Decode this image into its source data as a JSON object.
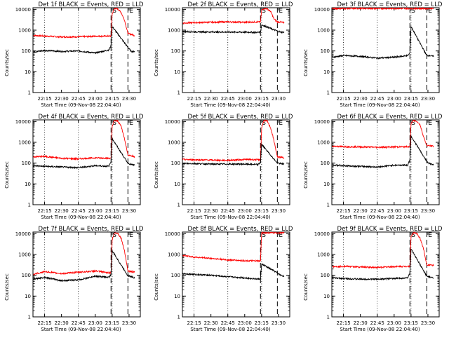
{
  "colors": {
    "events": "#000000",
    "lld": "#ff0000",
    "axes": "#000000",
    "background": "#ffffff"
  },
  "chart_data": [
    {
      "type": "line",
      "title": "Det 1f BLACK = Events, RED = LLD",
      "xlabel": "Start Time (09-Nov-08 22:04:40)",
      "ylabel": "Counts/sec",
      "yscale": "log",
      "ylim": [
        1,
        12000
      ],
      "xlim": [
        "22:04:40",
        "23:40:00"
      ],
      "xticks": [
        "22:15",
        "22:30",
        "22:45",
        "23:00",
        "23:15",
        "23:30"
      ],
      "yticks": [
        "1",
        "10",
        "100",
        "1000",
        "10000"
      ],
      "markers": [
        "S",
        "E"
      ],
      "series": [
        {
          "name": "LLD",
          "x": [
            "22:05",
            "22:15",
            "22:30",
            "22:45",
            "23:00",
            "23:14",
            "23:15",
            "23:17",
            "23:20",
            "23:23",
            "23:26",
            "23:29",
            "23:35"
          ],
          "y": [
            560,
            520,
            470,
            480,
            510,
            520,
            6000,
            11000,
            10500,
            7000,
            3000,
            700,
            550
          ]
        },
        {
          "name": "Events",
          "x": [
            "22:05",
            "22:15",
            "22:30",
            "22:45",
            "23:00",
            "23:12",
            "23:14",
            "23:15",
            "23:29",
            "23:32",
            "23:35"
          ],
          "y": [
            90,
            105,
            95,
            100,
            80,
            110,
            180,
            1500,
            150,
            95,
            95
          ]
        }
      ]
    },
    {
      "type": "line",
      "title": "Det 2f BLACK = Events, RED = LLD",
      "xlabel": "Start Time (09-Nov-08 22:04:40)",
      "ylabel": "Counts/sec",
      "yscale": "log",
      "ylim": [
        1,
        12000
      ],
      "xlim": [
        "22:04:40",
        "23:40:00"
      ],
      "xticks": [
        "22:15",
        "22:30",
        "22:45",
        "23:00",
        "23:15",
        "23:30"
      ],
      "yticks": [
        "1",
        "10",
        "100",
        "1000",
        "10000"
      ],
      "markers": [
        "S",
        "E"
      ],
      "series": [
        {
          "name": "LLD",
          "x": [
            "22:05",
            "22:15",
            "22:30",
            "22:45",
            "23:00",
            "23:14",
            "23:15",
            "23:17",
            "23:20",
            "23:23",
            "23:26",
            "23:29",
            "23:35"
          ],
          "y": [
            2200,
            2300,
            2400,
            2500,
            2400,
            2500,
            9000,
            11000,
            10500,
            8000,
            3500,
            2500,
            2300
          ]
        },
        {
          "name": "Events",
          "x": [
            "22:05",
            "22:15",
            "22:30",
            "22:45",
            "23:00",
            "23:12",
            "23:14",
            "23:15",
            "23:29",
            "23:32",
            "23:35"
          ],
          "y": [
            850,
            830,
            820,
            810,
            800,
            780,
            850,
            1800,
            900,
            800,
            790
          ]
        }
      ]
    },
    {
      "type": "line",
      "title": "Det 3f BLACK = Events, RED = LLD",
      "xlabel": "Start Time (09-Nov-08 22:04:40)",
      "ylabel": "Counts/sec",
      "yscale": "log",
      "ylim": [
        1,
        12000
      ],
      "xlim": [
        "22:04:40",
        "23:40:00"
      ],
      "xticks": [
        "22:15",
        "22:30",
        "22:45",
        "23:00",
        "23:15",
        "23:30"
      ],
      "yticks": [
        "1",
        "10",
        "100",
        "1000",
        "10000"
      ],
      "markers": [
        "S",
        "E"
      ],
      "series": [
        {
          "name": "LLD",
          "x": [
            "22:05",
            "22:15",
            "22:30",
            "22:45",
            "23:00",
            "23:14",
            "23:15",
            "23:20",
            "23:29",
            "23:35"
          ],
          "y": [
            11000,
            11000,
            11000,
            11000,
            11000,
            11000,
            11000,
            11000,
            11000,
            11000
          ]
        },
        {
          "name": "Events",
          "x": [
            "22:05",
            "22:15",
            "22:30",
            "22:45",
            "23:00",
            "23:12",
            "23:14",
            "23:15",
            "23:29",
            "23:32",
            "23:35"
          ],
          "y": [
            50,
            60,
            55,
            45,
            50,
            60,
            80,
            1500,
            60,
            60,
            55
          ]
        }
      ]
    },
    {
      "type": "line",
      "title": "Det 4f BLACK = Events, RED = LLD",
      "xlabel": "Start Time (09-Nov-08 22:04:40)",
      "ylabel": "Counts/sec",
      "yscale": "log",
      "ylim": [
        1,
        12000
      ],
      "xlim": [
        "22:04:40",
        "23:40:00"
      ],
      "xticks": [
        "22:15",
        "22:30",
        "22:45",
        "23:00",
        "23:15",
        "23:30"
      ],
      "yticks": [
        "1",
        "10",
        "100",
        "1000",
        "10000"
      ],
      "markers": [
        "S",
        "E"
      ],
      "series": [
        {
          "name": "LLD",
          "x": [
            "22:05",
            "22:15",
            "22:30",
            "22:45",
            "23:00",
            "23:14",
            "23:15",
            "23:17",
            "23:20",
            "23:23",
            "23:26",
            "23:29",
            "23:35"
          ],
          "y": [
            200,
            210,
            170,
            160,
            180,
            170,
            6000,
            11000,
            10500,
            6000,
            1500,
            250,
            200
          ]
        },
        {
          "name": "Events",
          "x": [
            "22:05",
            "22:15",
            "22:30",
            "22:45",
            "23:00",
            "23:12",
            "23:14",
            "23:15",
            "23:29",
            "23:32",
            "23:35"
          ],
          "y": [
            75,
            70,
            65,
            60,
            75,
            70,
            120,
            1500,
            100,
            85,
            80
          ]
        }
      ]
    },
    {
      "type": "line",
      "title": "Det 5f BLACK = Events, RED = LLD",
      "xlabel": "Start Time (09-Nov-08 22:04:40)",
      "ylabel": "Counts/sec",
      "yscale": "log",
      "ylim": [
        1,
        12000
      ],
      "xlim": [
        "22:04:40",
        "23:40:00"
      ],
      "xticks": [
        "22:15",
        "22:30",
        "22:45",
        "23:00",
        "23:15",
        "23:30"
      ],
      "yticks": [
        "1",
        "10",
        "100",
        "1000",
        "10000"
      ],
      "markers": [
        "S",
        "E"
      ],
      "series": [
        {
          "name": "LLD",
          "x": [
            "22:05",
            "22:15",
            "22:30",
            "22:45",
            "23:00",
            "23:14",
            "23:15",
            "23:17",
            "23:20",
            "23:23",
            "23:26",
            "23:29",
            "23:35"
          ],
          "y": [
            150,
            145,
            140,
            135,
            150,
            145,
            5000,
            11000,
            10500,
            5000,
            1200,
            200,
            180
          ]
        },
        {
          "name": "Events",
          "x": [
            "22:05",
            "22:15",
            "22:30",
            "22:45",
            "23:00",
            "23:12",
            "23:14",
            "23:15",
            "23:29",
            "23:32",
            "23:35"
          ],
          "y": [
            95,
            95,
            90,
            90,
            90,
            85,
            110,
            800,
            100,
            95,
            90
          ]
        }
      ]
    },
    {
      "type": "line",
      "title": "Det 6f BLACK = Events, RED = LLD",
      "xlabel": "Start Time (09-Nov-08 22:04:40)",
      "ylabel": "Counts/sec",
      "yscale": "log",
      "ylim": [
        1,
        12000
      ],
      "xlim": [
        "22:04:40",
        "23:40:00"
      ],
      "xticks": [
        "22:15",
        "22:30",
        "22:45",
        "23:00",
        "23:15",
        "23:30"
      ],
      "yticks": [
        "1",
        "10",
        "100",
        "1000",
        "10000"
      ],
      "markers": [
        "S",
        "E"
      ],
      "series": [
        {
          "name": "LLD",
          "x": [
            "22:05",
            "22:15",
            "22:30",
            "22:45",
            "23:00",
            "23:14",
            "23:15",
            "23:17",
            "23:20",
            "23:23",
            "23:26",
            "23:29",
            "23:35"
          ],
          "y": [
            650,
            620,
            600,
            580,
            600,
            620,
            8000,
            11000,
            10500,
            7000,
            2000,
            700,
            650
          ]
        },
        {
          "name": "Events",
          "x": [
            "22:05",
            "22:15",
            "22:30",
            "22:45",
            "23:00",
            "23:12",
            "23:14",
            "23:15",
            "23:29",
            "23:32",
            "23:35"
          ],
          "y": [
            80,
            75,
            70,
            65,
            80,
            80,
            150,
            2000,
            120,
            90,
            85
          ]
        }
      ]
    },
    {
      "type": "line",
      "title": "Det 7f BLACK = Events, RED = LLD",
      "xlabel": "Start Time (09-Nov-08 22:04:40)",
      "ylabel": "Counts/sec",
      "yscale": "log",
      "ylim": [
        1,
        12000
      ],
      "xlim": [
        "22:04:40",
        "23:40:00"
      ],
      "xticks": [
        "22:15",
        "22:30",
        "22:45",
        "23:00",
        "23:15",
        "23:30"
      ],
      "yticks": [
        "1",
        "10",
        "100",
        "1000",
        "10000"
      ],
      "markers": [
        "S",
        "E"
      ],
      "series": [
        {
          "name": "LLD",
          "x": [
            "22:05",
            "22:15",
            "22:30",
            "22:45",
            "23:00",
            "23:14",
            "23:15",
            "23:17",
            "23:20",
            "23:23",
            "23:26",
            "23:29",
            "23:35"
          ],
          "y": [
            110,
            150,
            120,
            140,
            160,
            130,
            5000,
            11000,
            10500,
            6000,
            1500,
            160,
            140
          ]
        },
        {
          "name": "Events",
          "x": [
            "22:05",
            "22:15",
            "22:30",
            "22:45",
            "23:00",
            "23:12",
            "23:14",
            "23:15",
            "23:29",
            "23:32",
            "23:35"
          ],
          "y": [
            65,
            80,
            55,
            60,
            90,
            80,
            110,
            1500,
            95,
            85,
            75
          ]
        }
      ]
    },
    {
      "type": "line",
      "title": "Det 8f BLACK = Events, RED = LLD",
      "xlabel": "Start Time (09-Nov-08 22:04:40)",
      "ylabel": "Counts/sec",
      "yscale": "log",
      "ylim": [
        1,
        12000
      ],
      "xlim": [
        "22:04:40",
        "23:40:00"
      ],
      "xticks": [
        "22:15",
        "22:30",
        "22:45",
        "23:00",
        "23:15",
        "23:30"
      ],
      "yticks": [
        "1",
        "10",
        "100",
        "1000",
        "10000"
      ],
      "markers": [
        "S",
        "E"
      ],
      "series": [
        {
          "name": "LLD",
          "x": [
            "22:05",
            "22:15",
            "22:30",
            "22:45",
            "23:00",
            "23:14",
            "23:15",
            "23:20",
            "23:29",
            "23:35"
          ],
          "y": [
            900,
            750,
            650,
            550,
            500,
            480,
            11000,
            11000,
            11000,
            11000
          ]
        },
        {
          "name": "Events",
          "x": [
            "22:05",
            "22:15",
            "22:30",
            "22:45",
            "23:00",
            "23:12",
            "23:14",
            "23:15",
            "23:29",
            "23:32",
            "23:35"
          ],
          "y": [
            120,
            110,
            100,
            85,
            75,
            65,
            70,
            350,
            130,
            100,
            90
          ]
        }
      ]
    },
    {
      "type": "line",
      "title": "Det 9f BLACK = Events, RED = LLD",
      "xlabel": "Start Time (09-Nov-08 22:04:40)",
      "ylabel": "Counts/sec",
      "yscale": "log",
      "ylim": [
        1,
        12000
      ],
      "xlim": [
        "22:04:40",
        "23:40:00"
      ],
      "xticks": [
        "22:15",
        "22:30",
        "22:45",
        "23:00",
        "23:15",
        "23:30"
      ],
      "yticks": [
        "1",
        "10",
        "100",
        "1000",
        "10000"
      ],
      "markers": [
        "S",
        "E"
      ],
      "series": [
        {
          "name": "LLD",
          "x": [
            "22:05",
            "22:15",
            "22:30",
            "22:45",
            "23:00",
            "23:14",
            "23:15",
            "23:17",
            "23:20",
            "23:23",
            "23:26",
            "23:29",
            "23:35"
          ],
          "y": [
            260,
            270,
            250,
            240,
            260,
            270,
            7000,
            11000,
            10500,
            6000,
            2000,
            320,
            300
          ]
        },
        {
          "name": "Events",
          "x": [
            "22:05",
            "22:15",
            "22:30",
            "22:45",
            "23:00",
            "23:12",
            "23:14",
            "23:15",
            "23:29",
            "23:32",
            "23:35"
          ],
          "y": [
            75,
            70,
            65,
            65,
            70,
            75,
            130,
            1800,
            90,
            80,
            75
          ]
        }
      ]
    }
  ]
}
